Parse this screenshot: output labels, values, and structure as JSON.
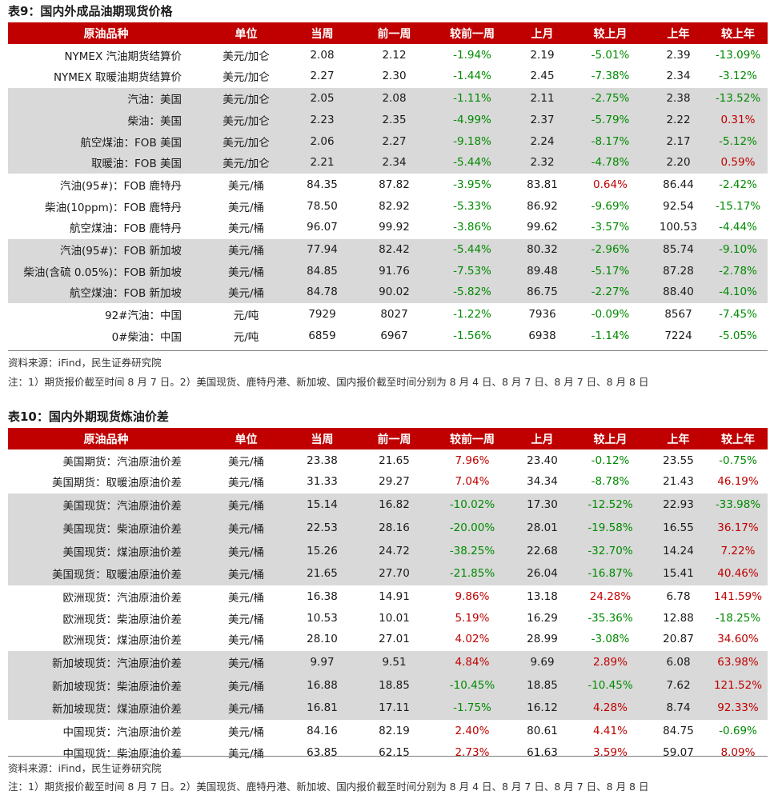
{
  "tables": [
    {
      "title": "表9：国内外成品油期现货价格",
      "headers": [
        "原油品种",
        "单位",
        "当周",
        "前一周",
        "较前一周",
        "上月",
        "较上月",
        "上年",
        "较上年"
      ],
      "rows": [
        {
          "name": "NYMEX 汽油期货结算价",
          "unit": "美元/加仑",
          "cur": "2.08",
          "prev": "2.12",
          "wow": "-1.94%",
          "month": "2.19",
          "mom": "-5.01%",
          "year": "2.39",
          "yoy": "-13.09%",
          "shade": false
        },
        {
          "name": "NYMEX 取暖油期货结算价",
          "unit": "美元/加仑",
          "cur": "2.27",
          "prev": "2.30",
          "wow": "-1.44%",
          "month": "2.45",
          "mom": "-7.38%",
          "year": "2.34",
          "yoy": "-3.12%",
          "shade": false
        },
        {
          "name": "汽油：美国",
          "unit": "美元/加仑",
          "cur": "2.05",
          "prev": "2.08",
          "wow": "-1.11%",
          "month": "2.11",
          "mom": "-2.75%",
          "year": "2.38",
          "yoy": "-13.52%",
          "shade": true
        },
        {
          "name": "柴油：美国",
          "unit": "美元/加仑",
          "cur": "2.23",
          "prev": "2.35",
          "wow": "-4.99%",
          "month": "2.37",
          "mom": "-5.79%",
          "year": "2.22",
          "yoy": "0.31%",
          "shade": true
        },
        {
          "name": "航空煤油：FOB 美国",
          "unit": "美元/加仑",
          "cur": "2.06",
          "prev": "2.27",
          "wow": "-9.18%",
          "month": "2.24",
          "mom": "-8.17%",
          "year": "2.17",
          "yoy": "-5.12%",
          "shade": true
        },
        {
          "name": "取暖油：FOB 美国",
          "unit": "美元/加仑",
          "cur": "2.21",
          "prev": "2.34",
          "wow": "-5.44%",
          "month": "2.32",
          "mom": "-4.78%",
          "year": "2.20",
          "yoy": "0.59%",
          "shade": true
        },
        {
          "name": "汽油(95#)：FOB 鹿特丹",
          "unit": "美元/桶",
          "cur": "84.35",
          "prev": "87.82",
          "wow": "-3.95%",
          "month": "83.81",
          "mom": "0.64%",
          "year": "86.44",
          "yoy": "-2.42%",
          "shade": false
        },
        {
          "name": "柴油(10ppm)：FOB 鹿特丹",
          "unit": "美元/桶",
          "cur": "78.50",
          "prev": "82.92",
          "wow": "-5.33%",
          "month": "86.92",
          "mom": "-9.69%",
          "year": "92.54",
          "yoy": "-15.17%",
          "shade": false
        },
        {
          "name": "航空煤油：FOB 鹿特丹",
          "unit": "美元/桶",
          "cur": "96.07",
          "prev": "99.92",
          "wow": "-3.86%",
          "month": "99.62",
          "mom": "-3.57%",
          "year": "100.53",
          "yoy": "-4.44%",
          "shade": false
        },
        {
          "name": "汽油(95#)：FOB 新加坡",
          "unit": "美元/桶",
          "cur": "77.94",
          "prev": "82.42",
          "wow": "-5.44%",
          "month": "80.32",
          "mom": "-2.96%",
          "year": "85.74",
          "yoy": "-9.10%",
          "shade": true
        },
        {
          "name": "柴油(含硫 0.05%)：FOB 新加坡",
          "unit": "美元/桶",
          "cur": "84.85",
          "prev": "91.76",
          "wow": "-7.53%",
          "month": "89.48",
          "mom": "-5.17%",
          "year": "87.28",
          "yoy": "-2.78%",
          "shade": true
        },
        {
          "name": "航空煤油：FOB 新加坡",
          "unit": "美元/桶",
          "cur": "84.78",
          "prev": "90.02",
          "wow": "-5.82%",
          "month": "86.75",
          "mom": "-2.27%",
          "year": "88.40",
          "yoy": "-4.10%",
          "shade": true
        },
        {
          "name": "92#汽油：中国",
          "unit": "元/吨",
          "cur": "7929",
          "prev": "8027",
          "wow": "-1.22%",
          "month": "7936",
          "mom": "-0.09%",
          "year": "8567",
          "yoy": "-7.45%",
          "shade": false
        },
        {
          "name": "0#柴油：中国",
          "unit": "元/吨",
          "cur": "6859",
          "prev": "6967",
          "wow": "-1.56%",
          "month": "6938",
          "mom": "-1.14%",
          "year": "7224",
          "yoy": "-5.05%",
          "shade": false
        }
      ],
      "source": "资料来源：iFind，民生证券研究院",
      "note": "注：1）期货报价截至时间 8 月 7 日。2）美国现货、鹿特丹港、新加坡、国内报价截至时间分别为 8 月 4 日、8 月 7 日、8 月 7 日、8 月 8 日"
    },
    {
      "title": "表10：国内外期现货炼油价差",
      "headers": [
        "原油品种",
        "单位",
        "当周",
        "前一周",
        "较前一周",
        "上月",
        "较上月",
        "上年",
        "较上年"
      ],
      "rows": [
        {
          "name": "美国期货：汽油原油价差",
          "unit": "美元/桶",
          "cur": "23.38",
          "prev": "21.65",
          "wow": "7.96%",
          "month": "23.40",
          "mom": "-0.12%",
          "year": "23.55",
          "yoy": "-0.75%",
          "shade": false
        },
        {
          "name": "美国期货：取暖油原油价差",
          "unit": "美元/桶",
          "cur": "31.33",
          "prev": "29.27",
          "wow": "7.04%",
          "month": "34.34",
          "mom": "-8.78%",
          "year": "21.43",
          "yoy": "46.19%",
          "shade": false
        },
        {
          "name": "美国现货：汽油原油价差",
          "unit": "美元/桶",
          "cur": "15.14",
          "prev": "16.82",
          "wow": "-10.02%",
          "month": "17.30",
          "mom": "-12.52%",
          "year": "22.93",
          "yoy": "-33.98%",
          "shade": true
        },
        {
          "name": "美国现货：柴油原油价差",
          "unit": "美元/桶",
          "cur": "22.53",
          "prev": "28.16",
          "wow": "-20.00%",
          "month": "28.01",
          "mom": "-19.58%",
          "year": "16.55",
          "yoy": "36.17%",
          "shade": true
        },
        {
          "name": "美国现货：煤油原油价差",
          "unit": "美元/桶",
          "cur": "15.26",
          "prev": "24.72",
          "wow": "-38.25%",
          "month": "22.68",
          "mom": "-32.70%",
          "year": "14.24",
          "yoy": "7.22%",
          "shade": true
        },
        {
          "name": "美国现货：取暖油原油价差",
          "unit": "美元/桶",
          "cur": "21.65",
          "prev": "27.70",
          "wow": "-21.85%",
          "month": "26.04",
          "mom": "-16.87%",
          "year": "15.41",
          "yoy": "40.46%",
          "shade": true
        },
        {
          "name": "欧洲现货：汽油原油价差",
          "unit": "美元/桶",
          "cur": "16.38",
          "prev": "14.91",
          "wow": "9.86%",
          "month": "13.18",
          "mom": "24.28%",
          "year": "6.78",
          "yoy": "141.59%",
          "shade": false
        },
        {
          "name": "欧洲现货：柴油原油价差",
          "unit": "美元/桶",
          "cur": "10.53",
          "prev": "10.01",
          "wow": "5.19%",
          "month": "16.29",
          "mom": "-35.36%",
          "year": "12.88",
          "yoy": "-18.25%",
          "shade": false
        },
        {
          "name": "欧洲现货：煤油原油价差",
          "unit": "美元/桶",
          "cur": "28.10",
          "prev": "27.01",
          "wow": "4.02%",
          "month": "28.99",
          "mom": "-3.08%",
          "year": "20.87",
          "yoy": "34.60%",
          "shade": false
        },
        {
          "name": "新加坡现货：汽油原油价差",
          "unit": "美元/桶",
          "cur": "9.97",
          "prev": "9.51",
          "wow": "4.84%",
          "month": "9.69",
          "mom": "2.89%",
          "year": "6.08",
          "yoy": "63.98%",
          "shade": true
        },
        {
          "name": "新加坡现货：柴油原油价差",
          "unit": "美元/桶",
          "cur": "16.88",
          "prev": "18.85",
          "wow": "-10.45%",
          "month": "18.85",
          "mom": "-10.45%",
          "year": "7.62",
          "yoy": "121.52%",
          "shade": true
        },
        {
          "name": "新加坡现货：煤油原油价差",
          "unit": "美元/桶",
          "cur": "16.81",
          "prev": "17.11",
          "wow": "-1.75%",
          "month": "16.12",
          "mom": "4.28%",
          "year": "8.74",
          "yoy": "92.33%",
          "shade": true
        },
        {
          "name": "中国现货：汽油原油价差",
          "unit": "美元/桶",
          "cur": "84.16",
          "prev": "82.19",
          "wow": "2.40%",
          "month": "80.61",
          "mom": "4.41%",
          "year": "84.75",
          "yoy": "-0.69%",
          "shade": false
        },
        {
          "name": "中国现货：柴油原油价差",
          "unit": "美元/桶",
          "cur": "63.85",
          "prev": "62.15",
          "wow": "2.73%",
          "month": "61.63",
          "mom": "3.59%",
          "year": "59.07",
          "yoy": "8.09%",
          "shade": false
        }
      ],
      "source": "资料来源：iFind，民生证券研究院",
      "note": "注：1）期货报价截至时间 8 月 7 日。2）美国现货、鹿特丹港、新加坡、国内报价截至时间分别为 8 月 4 日、8 月 7 日、8 月 7 日、8 月 8 日"
    }
  ]
}
